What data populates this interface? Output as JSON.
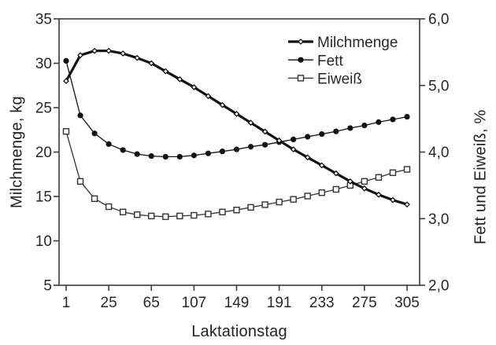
{
  "colors": {
    "background": "#ffffff",
    "text": "#26262d",
    "axis": "#3a3a3a",
    "series_dark": "#111111",
    "series_mid": "#333333"
  },
  "chart_data": {
    "type": "line",
    "title": "",
    "grid": false,
    "legend_position": "top-right-inside",
    "x_axis": {
      "title": "Laktationstag",
      "n_points": 25,
      "tick_labels": [
        "1",
        "25",
        "65",
        "107",
        "149",
        "191",
        "233",
        "275",
        "305"
      ],
      "tick_indices": [
        0,
        3,
        6,
        9,
        12,
        15,
        18,
        21,
        24
      ]
    },
    "y_left": {
      "title": "Milchmenge, kg",
      "range": [
        5,
        35
      ],
      "tick_values": [
        35,
        30,
        25,
        20,
        15,
        10,
        5
      ],
      "tick_labels": [
        "35",
        "30",
        "25",
        "20",
        "15",
        "10",
        "5"
      ]
    },
    "y_right": {
      "title": "Fett und Eiweiß, %",
      "range": [
        2,
        6
      ],
      "tick_values": [
        6,
        5,
        4,
        3,
        2
      ],
      "tick_labels": [
        "6,0",
        "5,0",
        "4,0",
        "3,0",
        "2,0"
      ]
    },
    "series": [
      {
        "name": "Milchmenge",
        "axis": "left",
        "marker": "open-diamond",
        "line_weight": "thick",
        "color": "#111111",
        "values": [
          28.0,
          30.9,
          31.4,
          31.4,
          31.1,
          30.6,
          30.0,
          29.1,
          28.2,
          27.3,
          26.3,
          25.3,
          24.3,
          23.3,
          22.3,
          21.3,
          20.3,
          19.4,
          18.5,
          17.6,
          16.7,
          15.9,
          15.2,
          14.6,
          14.1
        ]
      },
      {
        "name": "Fett",
        "axis": "right",
        "marker": "filled-circle",
        "line_weight": "thin",
        "color": "#111111",
        "values": [
          5.37,
          4.55,
          4.28,
          4.12,
          4.03,
          3.97,
          3.94,
          3.93,
          3.93,
          3.95,
          3.98,
          4.01,
          4.04,
          4.08,
          4.11,
          4.15,
          4.19,
          4.23,
          4.27,
          4.31,
          4.36,
          4.4,
          4.45,
          4.49,
          4.53
        ]
      },
      {
        "name": "Eiweiß",
        "axis": "right",
        "marker": "open-square",
        "line_weight": "thin",
        "color": "#333333",
        "values": [
          4.31,
          3.56,
          3.3,
          3.18,
          3.1,
          3.06,
          3.04,
          3.03,
          3.04,
          3.05,
          3.07,
          3.1,
          3.13,
          3.17,
          3.21,
          3.25,
          3.29,
          3.34,
          3.39,
          3.44,
          3.5,
          3.56,
          3.62,
          3.69,
          3.74
        ]
      }
    ]
  }
}
